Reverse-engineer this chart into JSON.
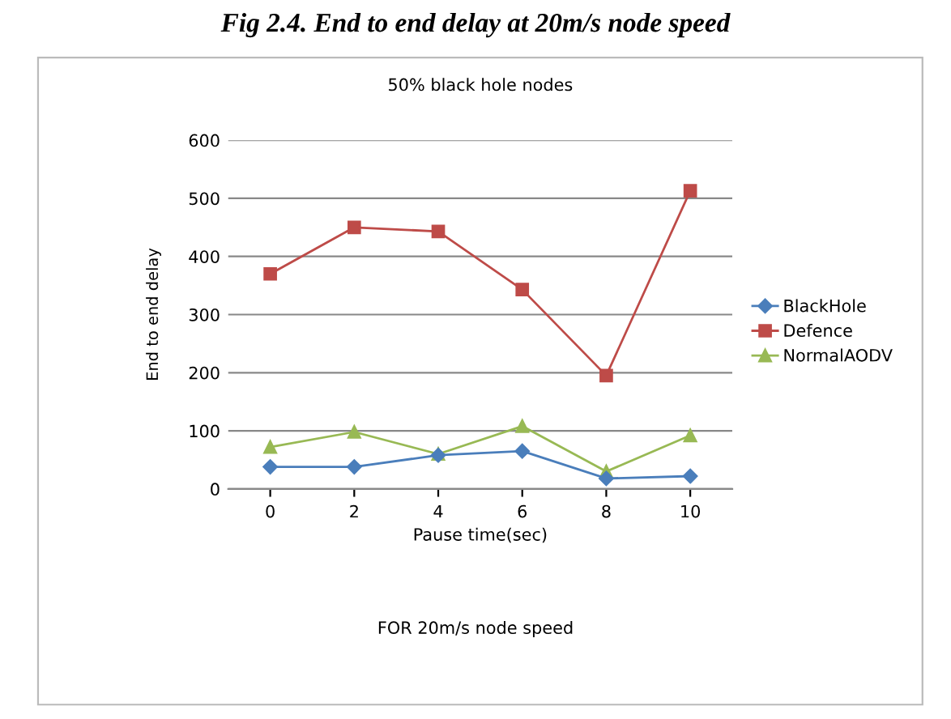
{
  "chart_data": {
    "type": "line",
    "title": "50% black hole nodes",
    "xlabel": "Pause time(sec)",
    "ylabel": "End to end delay",
    "annotations": [
      "Fig 2.4. End to end delay at 20m/s node speed",
      "FOR 20m/s node speed"
    ],
    "categories": [
      "0",
      "2",
      "4",
      "6",
      "8",
      "10"
    ],
    "series": [
      {
        "name": "BlackHole",
        "color": "#4a7ebb",
        "marker": "diamond",
        "values": [
          38,
          38,
          58,
          65,
          18,
          22
        ]
      },
      {
        "name": "Defence",
        "color": "#be4b48",
        "marker": "square",
        "values": [
          370,
          450,
          443,
          343,
          195,
          513
        ]
      },
      {
        "name": "NormalAODV",
        "color": "#98b954",
        "marker": "triangle",
        "values": [
          72,
          98,
          60,
          108,
          30,
          92
        ]
      }
    ],
    "ylim": [
      0,
      600
    ],
    "yticks": [
      0,
      100,
      200,
      300,
      400,
      500,
      600
    ],
    "grid": "y",
    "legend": "right",
    "line_style": "solid"
  }
}
